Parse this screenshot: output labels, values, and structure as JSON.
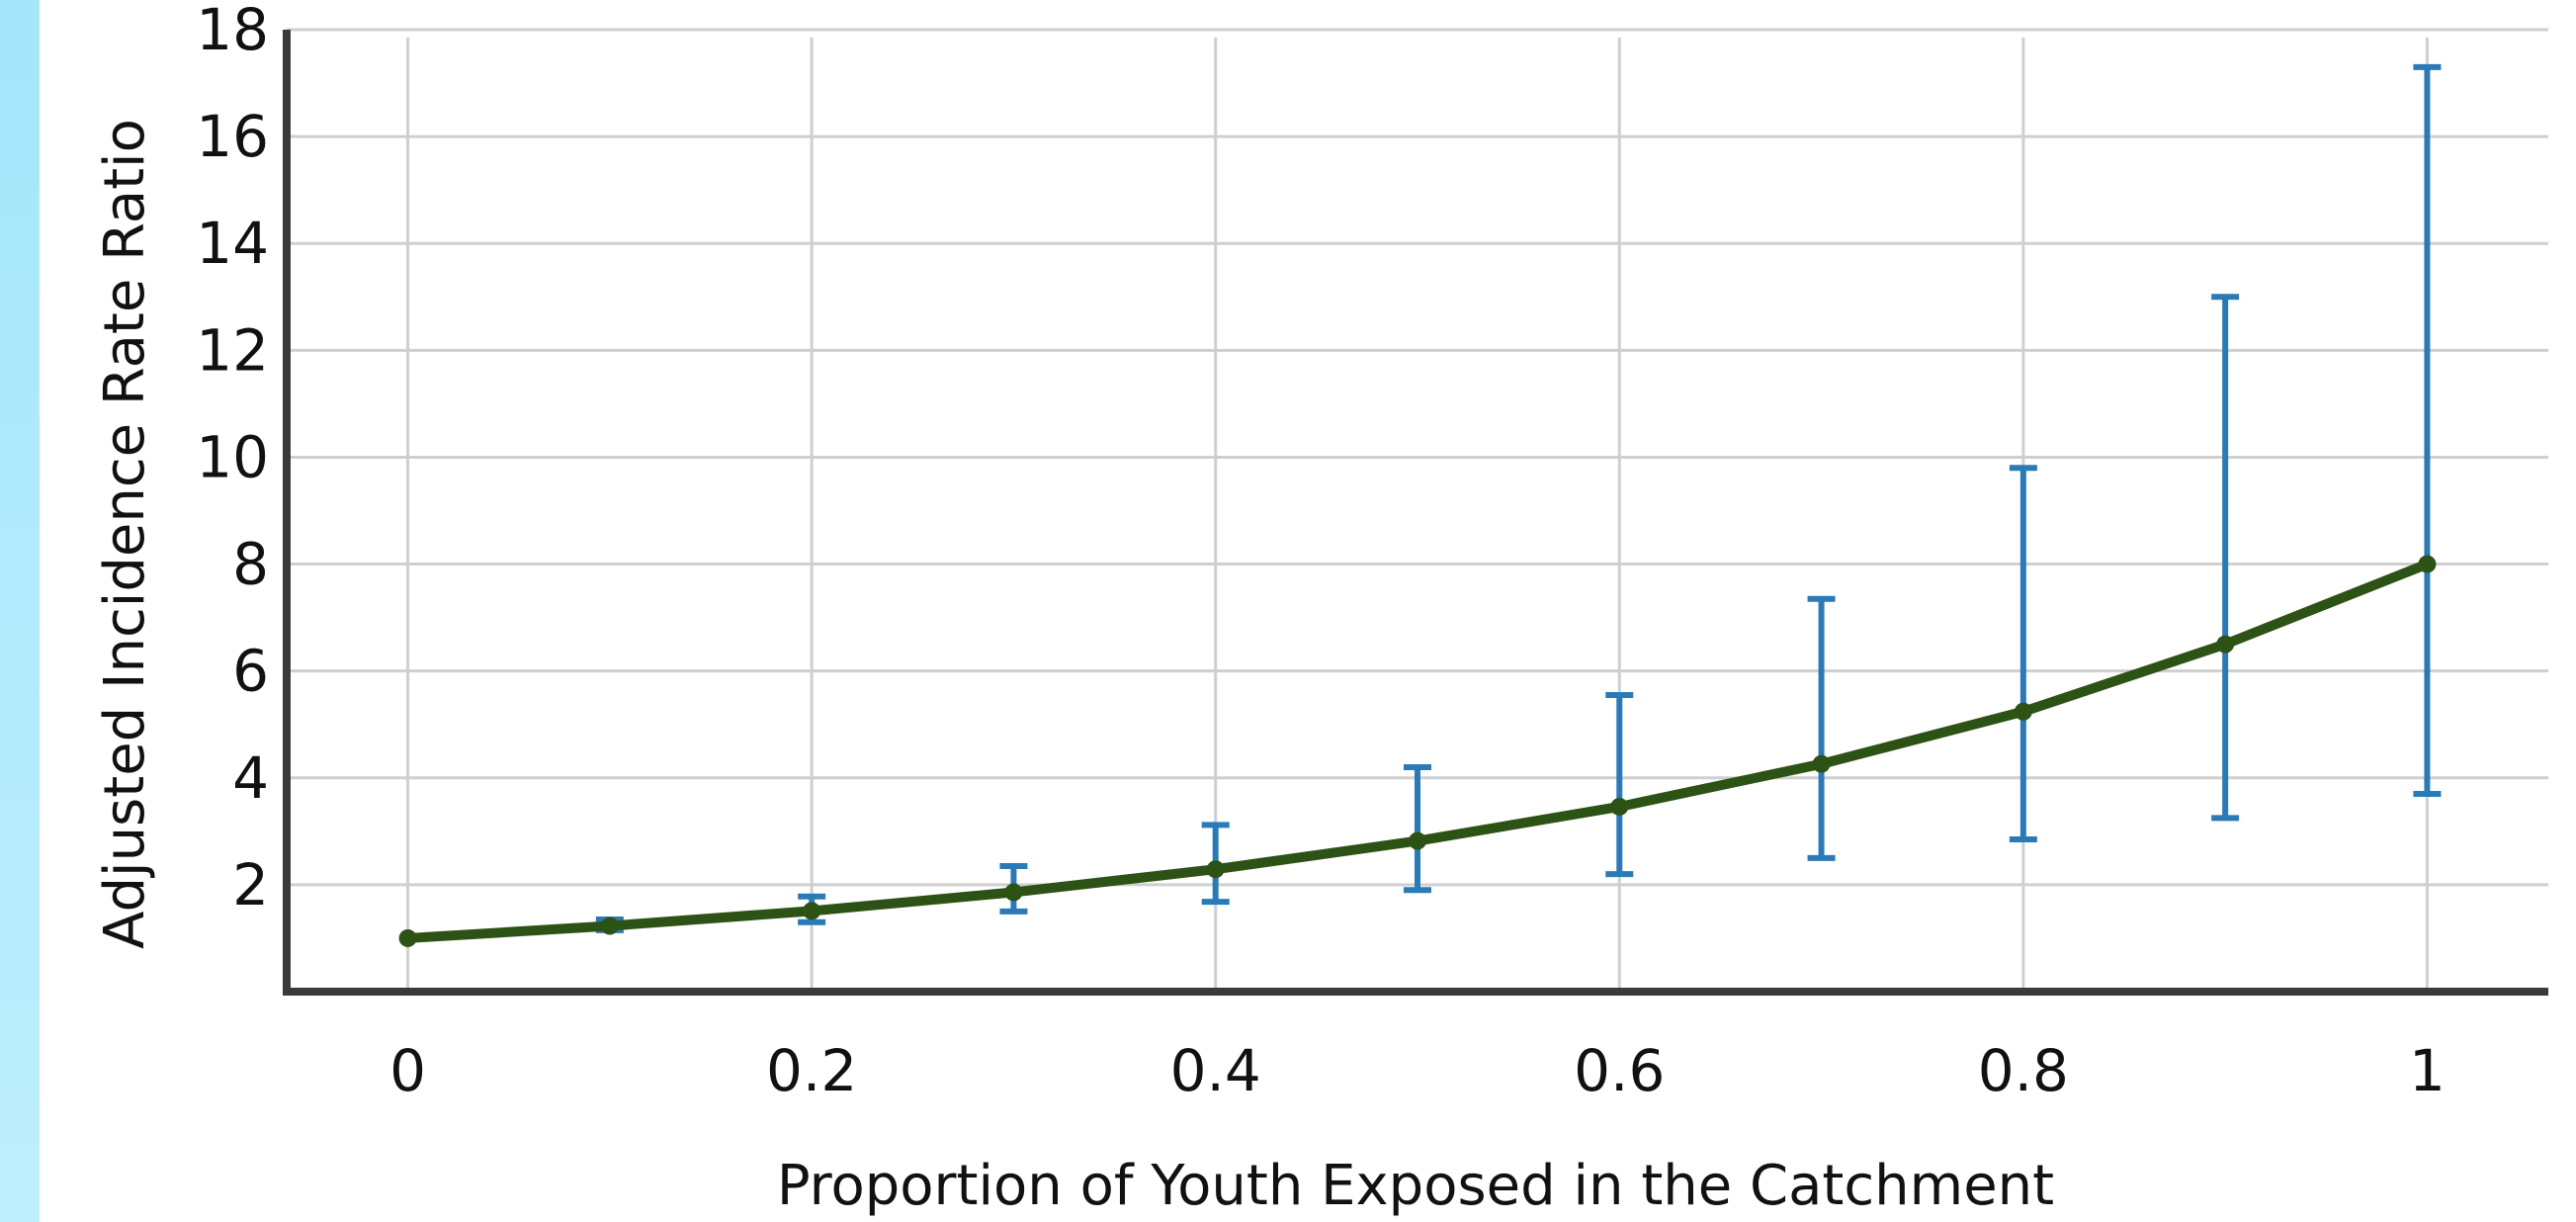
{
  "chart_data": {
    "type": "line",
    "title": "",
    "xlabel": "Proportion of Youth Exposed in the Catchment",
    "ylabel": "Adjusted Incidence Rate Ratio",
    "xlim": [
      -0.06,
      1.06
    ],
    "ylim": [
      0,
      18
    ],
    "x_ticks": [
      "0",
      "0.2",
      "0.4",
      "0.6",
      "0.8",
      "1"
    ],
    "x_tick_values": [
      0,
      0.2,
      0.4,
      0.6,
      0.8,
      1
    ],
    "y_ticks": [
      "2",
      "4",
      "6",
      "8",
      "10",
      "12",
      "14",
      "16",
      "18"
    ],
    "y_tick_values": [
      2,
      4,
      6,
      8,
      10,
      12,
      14,
      16,
      18
    ],
    "grid": true,
    "legend": "none",
    "colors": {
      "line": "#2d5216",
      "error_bars": "#2a7ab8",
      "grid": "#cfcfcf",
      "axis": "#3a3a3a",
      "side_strip": "#a8e7fb"
    },
    "series": [
      {
        "x": [
          0,
          0.1,
          0.2,
          0.3,
          0.4,
          0.5,
          0.6,
          0.7,
          0.8,
          0.9,
          1.0
        ],
        "y": [
          1.0,
          1.23,
          1.51,
          1.86,
          2.29,
          2.82,
          3.46,
          4.26,
          5.24,
          6.5,
          8.0
        ],
        "lower": [
          1.0,
          1.15,
          1.3,
          1.5,
          1.68,
          1.9,
          2.2,
          2.5,
          2.85,
          3.25,
          3.7
        ],
        "upper": [
          1.0,
          1.35,
          1.78,
          2.35,
          3.12,
          4.2,
          5.55,
          7.35,
          9.8,
          13.0,
          17.3
        ]
      }
    ]
  }
}
